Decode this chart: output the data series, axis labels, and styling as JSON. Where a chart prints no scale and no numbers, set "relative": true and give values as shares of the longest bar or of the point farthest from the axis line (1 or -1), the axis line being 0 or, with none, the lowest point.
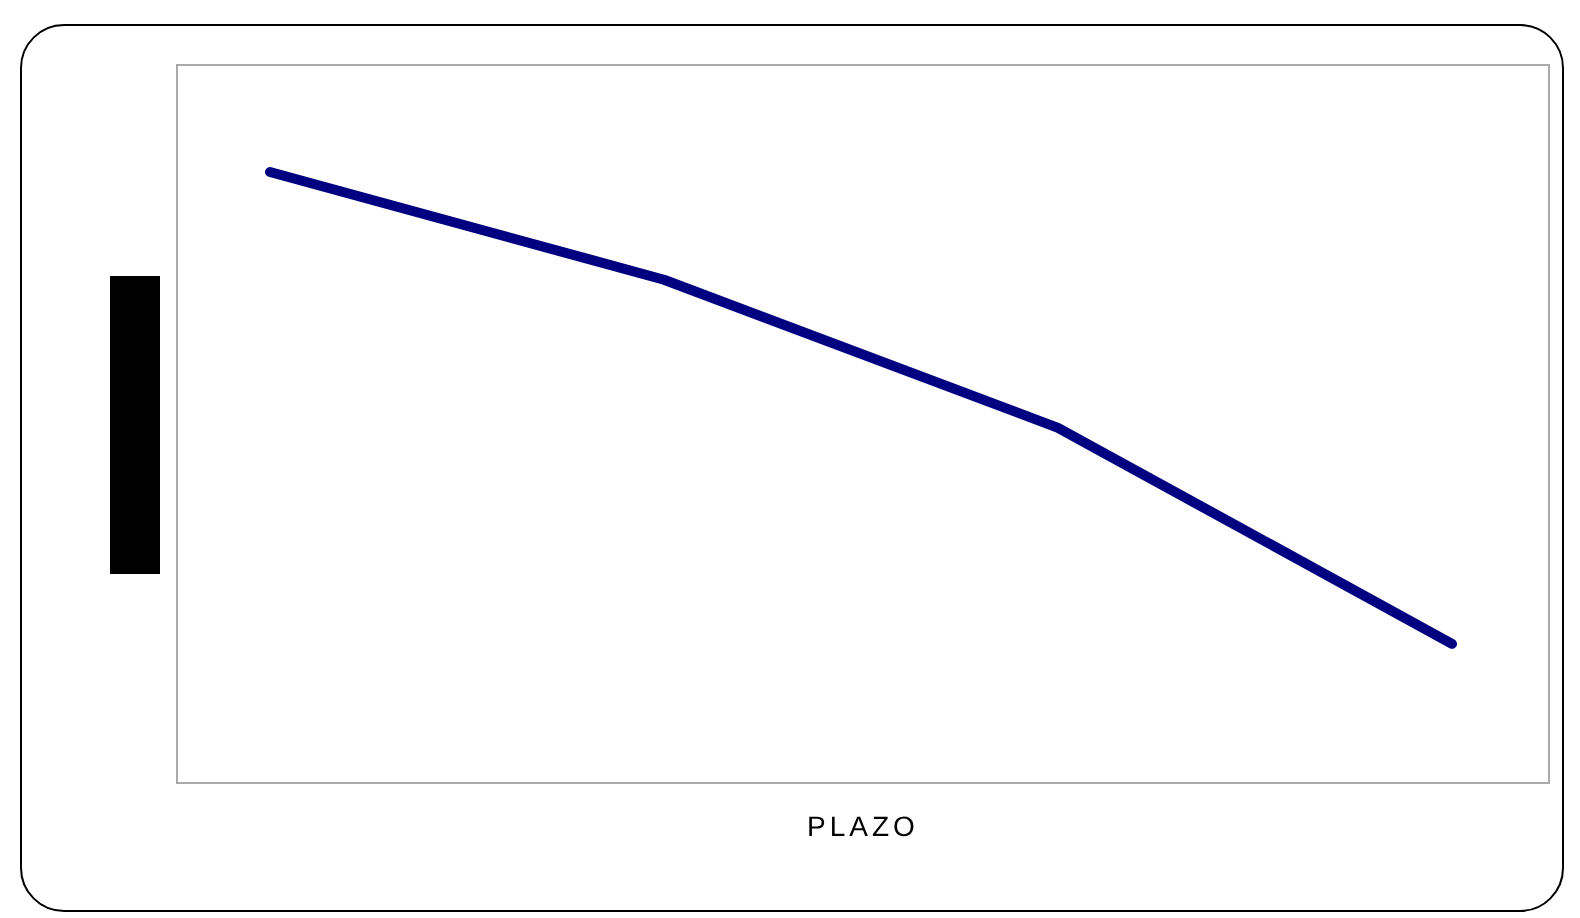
{
  "chart_data": {
    "type": "line",
    "xlabel": "PLAZO",
    "categories": [
      null,
      null,
      null,
      null
    ],
    "relative": true,
    "series": [
      {
        "color": "#000080",
        "values": [
          1,
          0.824,
          0.582,
          0.229
        ]
      }
    ],
    "marker": "none",
    "line_style": "solid"
  }
}
